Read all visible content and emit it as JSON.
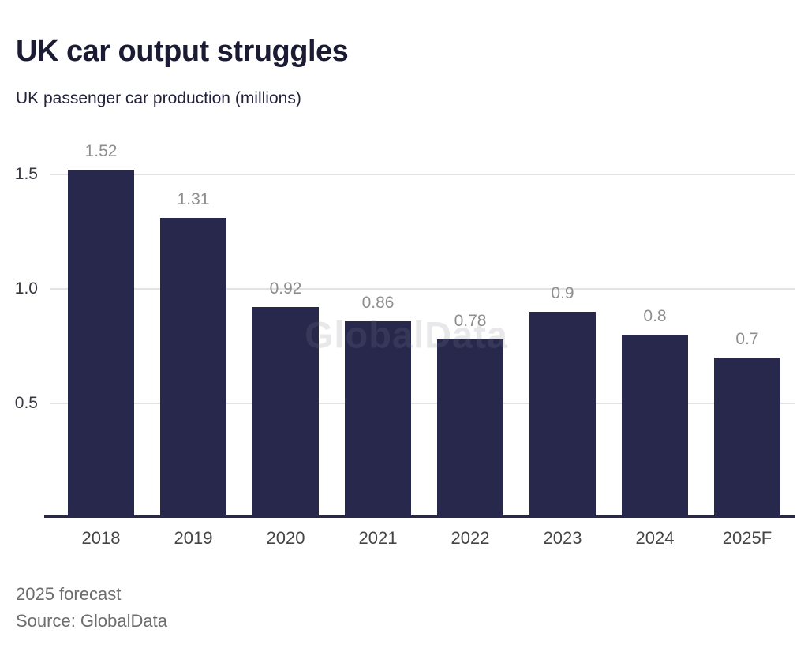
{
  "header": {
    "title": "UK car output struggles",
    "subtitle": "UK passenger car production (millions)"
  },
  "chart_data": {
    "type": "bar",
    "title": "UK car output struggles",
    "subtitle": "UK passenger car production (millions)",
    "categories": [
      "2018",
      "2019",
      "2020",
      "2021",
      "2022",
      "2023",
      "2024",
      "2025F"
    ],
    "values": [
      1.52,
      1.31,
      0.92,
      0.86,
      0.78,
      0.9,
      0.8,
      0.7
    ],
    "value_labels": [
      "1.52",
      "1.31",
      "0.92",
      "0.86",
      "0.78",
      "0.9",
      "0.8",
      "0.7"
    ],
    "ylim": [
      0,
      1.6
    ],
    "yticks": [
      {
        "value": 0.5,
        "label": "0.5"
      },
      {
        "value": 1.0,
        "label": "1.0"
      },
      {
        "value": 1.5,
        "label": "1.5"
      }
    ],
    "grid": true,
    "legend": "none",
    "watermark": "GlobalData",
    "bar_color": "#28284d",
    "grid_color": "#e3e3e3",
    "axis_color": "#28284d",
    "value_label_color": "#8e8e8e",
    "xtick_color": "#454545",
    "ytick_color": "#37373f"
  },
  "footer": {
    "note": "2025 forecast",
    "source": "Source: GlobalData"
  }
}
